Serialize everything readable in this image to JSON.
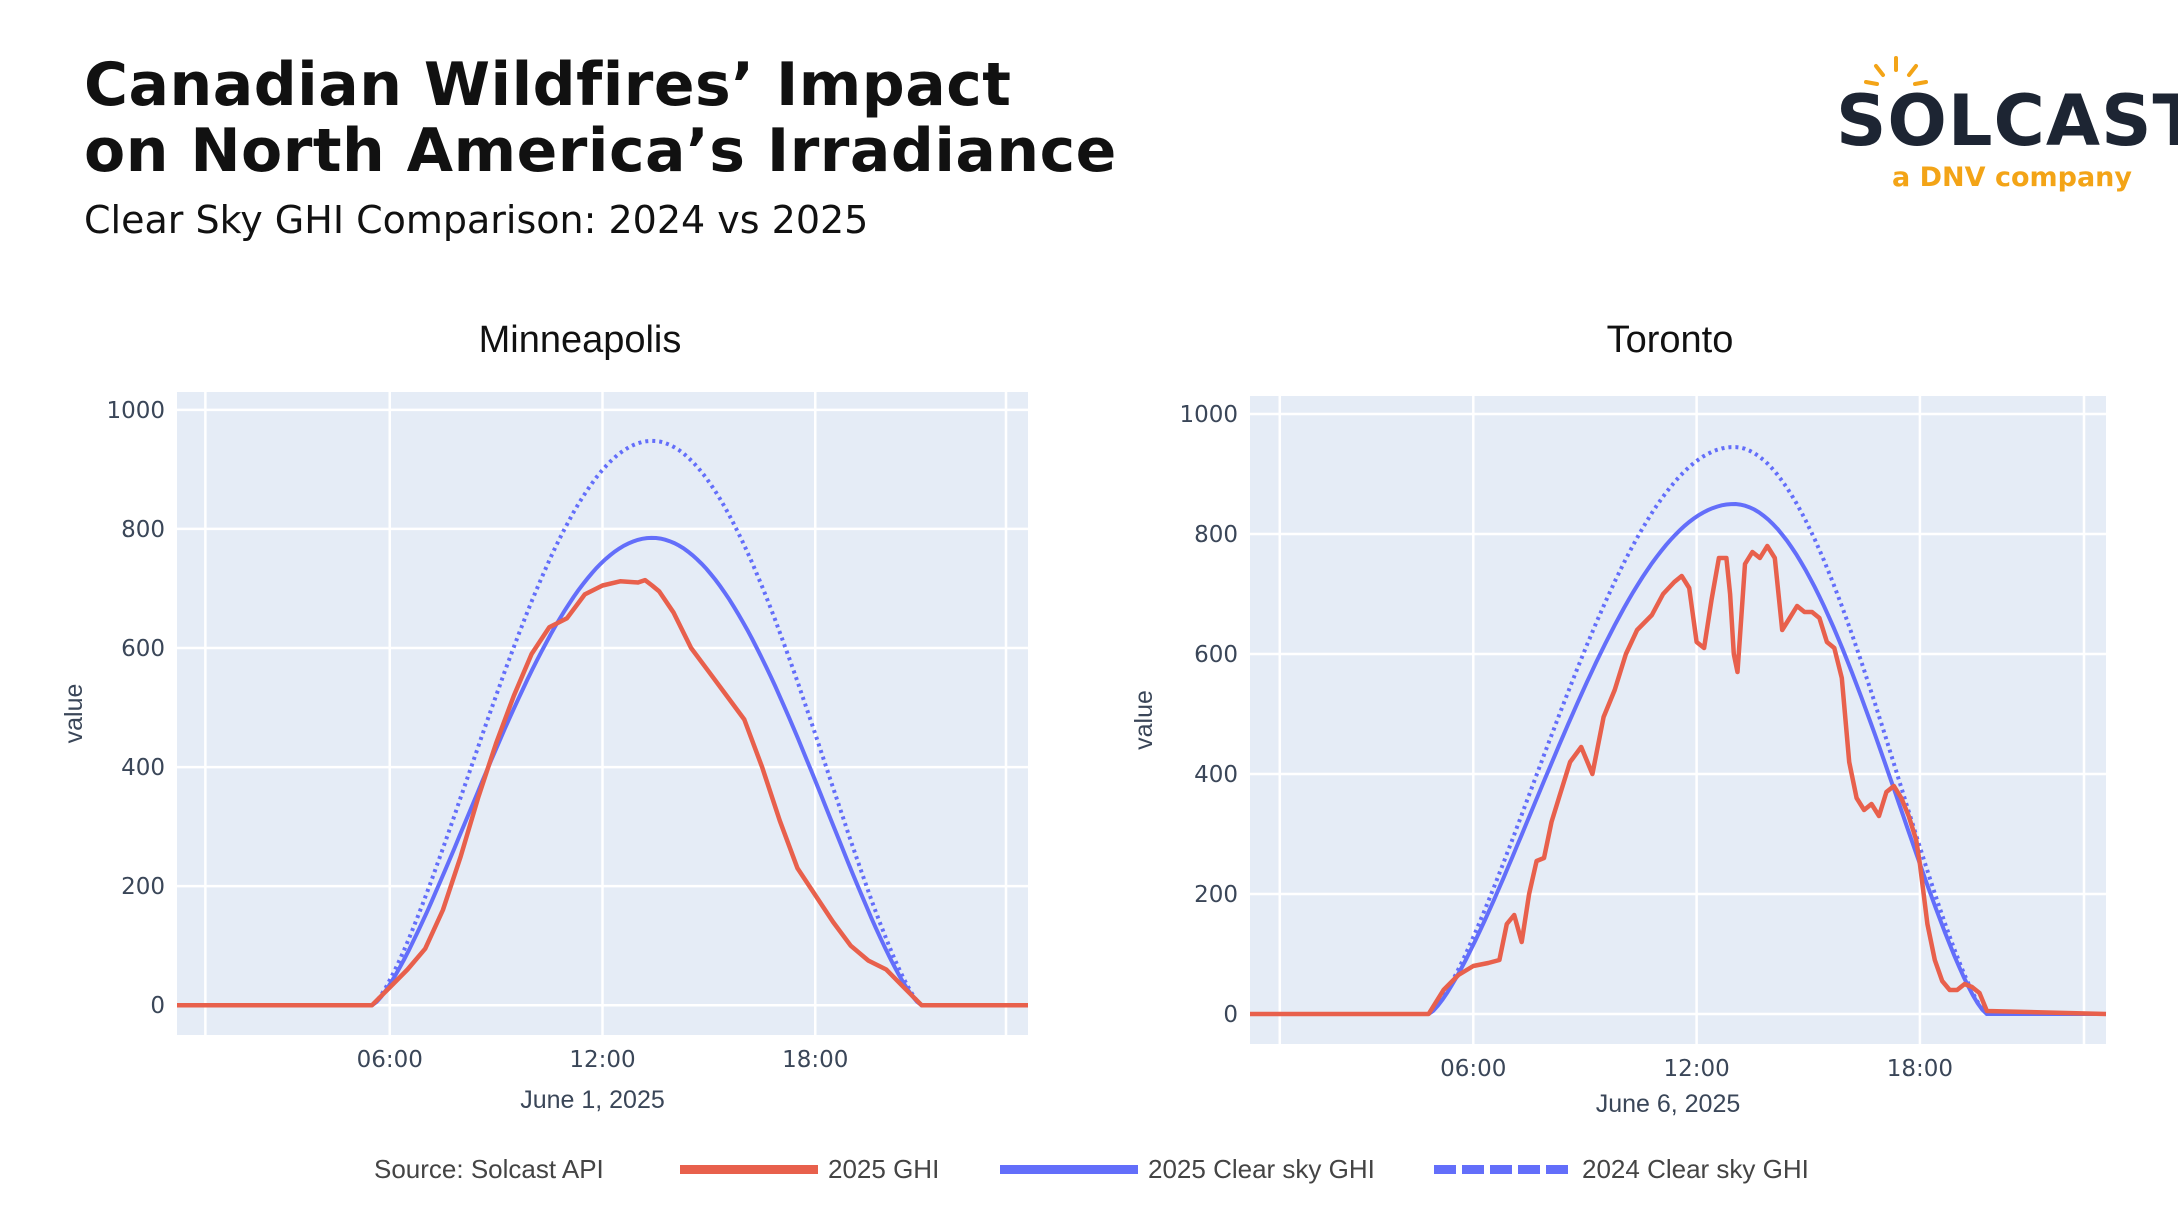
{
  "header": {
    "title_line1": "Canadian Wildfires’ Impact",
    "title_line2": "on North America’s Irradiance",
    "subtitle": "Clear Sky GHI Comparison: 2024 vs 2025"
  },
  "logo": {
    "wordmark": "SOLCAST",
    "tagline": "a DNV company",
    "colors": {
      "word": "#1d2533",
      "sun": "#f3a417"
    }
  },
  "legend": {
    "source": "Source: Solcast API",
    "items": [
      {
        "label": "2025 GHI",
        "color": "#e8604c",
        "style": "solid"
      },
      {
        "label": "2025 Clear sky GHI",
        "color": "#636efa",
        "style": "solid"
      },
      {
        "label": "2024 Clear sky GHI",
        "color": "#636efa",
        "style": "dotted"
      }
    ]
  },
  "chart_data": [
    {
      "type": "line",
      "title": "Minneapolis",
      "xlabel": "June 1, 2025",
      "ylabel": "value",
      "xlim": [
        0,
        24
      ],
      "ylim": [
        -50,
        1030
      ],
      "xticks": [
        6,
        12,
        18
      ],
      "xtick_labels": [
        "06:00",
        "12:00",
        "18:00"
      ],
      "yticks": [
        0,
        200,
        400,
        600,
        800,
        1000
      ],
      "yticks_labels": [
        "0",
        "200",
        "400",
        "600",
        "800",
        "1000"
      ],
      "clear_2024": {
        "sunrise": 5.5,
        "sunset": 21.0,
        "peak_time": 13.4,
        "peak": 948
      },
      "clear_2025": {
        "sunrise": 5.5,
        "sunset": 21.0,
        "peak_time": 13.4,
        "peak": 785
      },
      "series": [
        {
          "name": "2025 GHI",
          "x": [
            0,
            5.5,
            6.0,
            6.5,
            7.0,
            7.5,
            8.0,
            8.5,
            9.0,
            9.5,
            10.0,
            10.5,
            11.0,
            11.5,
            12.0,
            12.5,
            13.0,
            13.2,
            13.4,
            13.6,
            14.0,
            14.5,
            15.0,
            15.5,
            16.0,
            16.5,
            17.0,
            17.5,
            18.0,
            18.5,
            19.0,
            19.5,
            20.0,
            20.5,
            21.0,
            24.0
          ],
          "values": [
            0,
            0,
            30,
            60,
            95,
            160,
            250,
            350,
            440,
            520,
            590,
            635,
            650,
            690,
            705,
            712,
            710,
            714,
            705,
            695,
            660,
            600,
            560,
            520,
            480,
            400,
            310,
            230,
            185,
            140,
            100,
            75,
            60,
            30,
            0,
            0
          ]
        }
      ]
    },
    {
      "type": "line",
      "title": "Toronto",
      "xlabel": "June 6, 2025",
      "ylabel": "value",
      "xlim": [
        0,
        23
      ],
      "ylim": [
        -50,
        1030
      ],
      "xticks": [
        6,
        12,
        18
      ],
      "xtick_labels": [
        "06:00",
        "12:00",
        "18:00"
      ],
      "yticks": [
        0,
        200,
        400,
        600,
        800,
        1000
      ],
      "yticks_labels": [
        "0",
        "200",
        "400",
        "600",
        "800",
        "1000"
      ],
      "clear_2024": {
        "sunrise": 4.8,
        "sunset": 19.8,
        "peak_time": 13.0,
        "peak": 945
      },
      "clear_2025": {
        "sunrise": 4.8,
        "sunset": 19.8,
        "peak_time": 13.0,
        "peak": 850
      },
      "series": [
        {
          "name": "2025 GHI",
          "x": [
            0,
            4.8,
            5.2,
            5.6,
            6.0,
            6.4,
            6.7,
            6.9,
            7.1,
            7.3,
            7.5,
            7.7,
            7.9,
            8.1,
            8.3,
            8.6,
            8.9,
            9.2,
            9.5,
            9.8,
            10.1,
            10.4,
            10.8,
            11.1,
            11.4,
            11.6,
            11.8,
            12.0,
            12.2,
            12.4,
            12.6,
            12.8,
            12.9,
            13.0,
            13.1,
            13.3,
            13.5,
            13.7,
            13.9,
            14.1,
            14.3,
            14.5,
            14.7,
            14.9,
            15.1,
            15.3,
            15.5,
            15.7,
            15.9,
            16.1,
            16.3,
            16.5,
            16.7,
            16.9,
            17.1,
            17.3,
            17.5,
            17.7,
            17.9,
            18.0,
            18.2,
            18.4,
            18.6,
            18.8,
            19.0,
            19.2,
            19.4,
            19.6,
            19.8,
            23.0
          ],
          "values": [
            0,
            0,
            40,
            65,
            80,
            85,
            90,
            150,
            165,
            120,
            200,
            255,
            260,
            320,
            360,
            420,
            445,
            400,
            495,
            540,
            600,
            640,
            665,
            700,
            720,
            730,
            710,
            620,
            610,
            690,
            760,
            760,
            700,
            600,
            570,
            750,
            770,
            760,
            780,
            760,
            640,
            660,
            680,
            670,
            670,
            660,
            620,
            610,
            560,
            420,
            360,
            340,
            350,
            330,
            370,
            380,
            360,
            330,
            290,
            250,
            150,
            90,
            55,
            40,
            40,
            50,
            45,
            35,
            5,
            0
          ]
        }
      ]
    }
  ]
}
